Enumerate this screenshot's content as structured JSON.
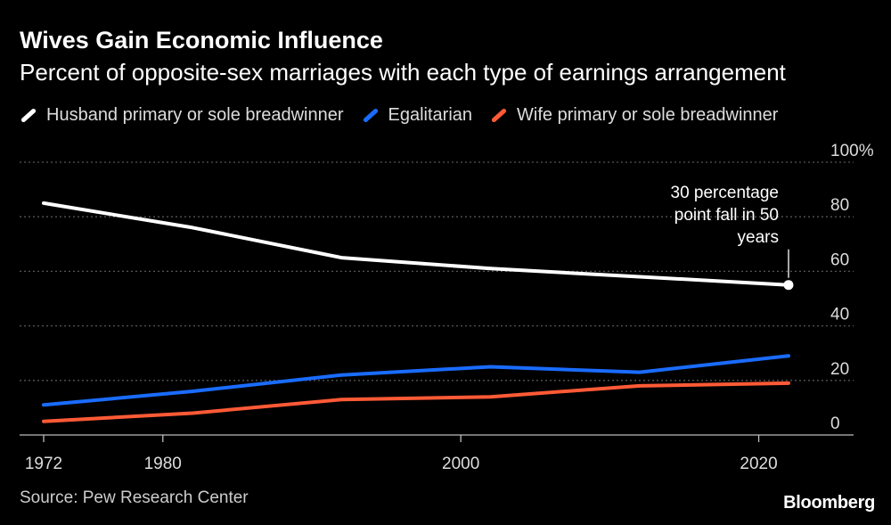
{
  "header": {
    "title": "Wives Gain Economic Influence",
    "subtitle": "Percent of opposite-sex marriages with each type of earnings arrangement"
  },
  "footer": {
    "source": "Source: Pew Research Center",
    "brand": "Bloomberg"
  },
  "colors": {
    "background": "#000000",
    "husband": "#ffffff",
    "egalitarian": "#1a6cff",
    "wife": "#ff5a36",
    "grid": "#555555"
  },
  "chart_data": {
    "type": "line",
    "xlim": [
      1972,
      2022
    ],
    "ylim": [
      0,
      100
    ],
    "x_ticks": [
      1972,
      1980,
      2000,
      2020
    ],
    "y_ticks": [
      0,
      20,
      40,
      60,
      80,
      100
    ],
    "y_tick_labels": [
      "0",
      "20",
      "40",
      "60",
      "80",
      "100%"
    ],
    "grid": true,
    "legend_position": "top",
    "series": [
      {
        "name": "Husband primary or sole breadwinner",
        "color": "#ffffff",
        "x": [
          1972,
          1982,
          1992,
          2002,
          2012,
          2022
        ],
        "y": [
          85,
          76,
          65,
          61,
          58,
          55
        ]
      },
      {
        "name": "Egalitarian",
        "color": "#1a6cff",
        "x": [
          1972,
          1982,
          1992,
          2002,
          2012,
          2022
        ],
        "y": [
          11,
          16,
          22,
          25,
          23,
          29
        ]
      },
      {
        "name": "Wife primary or sole breadwinner",
        "color": "#ff5a36",
        "x": [
          1972,
          1982,
          1992,
          2002,
          2012,
          2022
        ],
        "y": [
          5,
          8,
          13,
          14,
          18,
          19
        ]
      }
    ],
    "annotation": {
      "lines": [
        "30 percentage",
        "point fall in 50",
        "years"
      ],
      "x": 2022,
      "y": 55
    }
  }
}
